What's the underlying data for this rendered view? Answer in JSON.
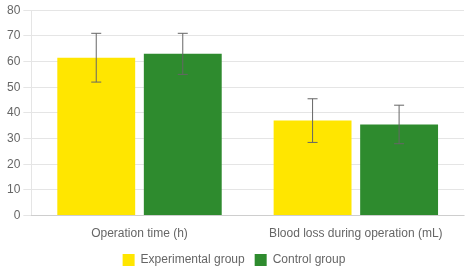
{
  "chart_data": {
    "type": "bar",
    "categories": [
      "Operation time (h)",
      "Blood loss during operation (mL)"
    ],
    "series": [
      {
        "name": "Experimental group",
        "color": "#FFE600",
        "values": [
          61.5,
          37.0
        ],
        "errors": [
          9.5,
          8.5
        ]
      },
      {
        "name": "Control group",
        "color": "#2E8B2E",
        "values": [
          63.0,
          35.5
        ],
        "errors": [
          8.0,
          7.5
        ]
      }
    ],
    "ylim": [
      0,
      80
    ],
    "yticks": [
      0,
      10,
      20,
      30,
      40,
      50,
      60,
      70,
      80
    ],
    "grid": true,
    "legend": "bottom"
  }
}
